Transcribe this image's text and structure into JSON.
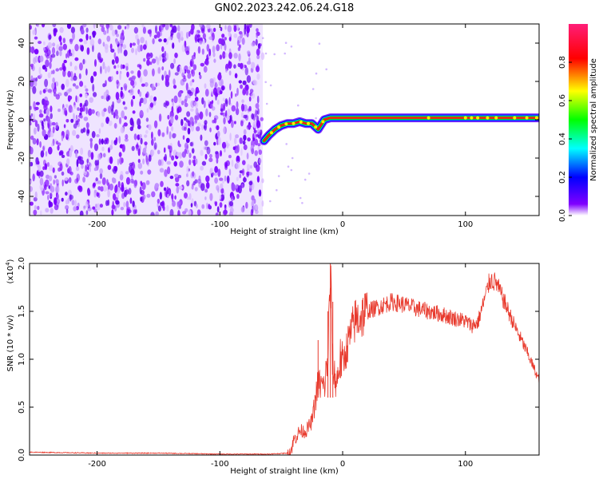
{
  "title": "GN02.2023.242.06.24.G18",
  "chart_data": [
    {
      "type": "heatmap",
      "xlabel": "Height of straight line (km)",
      "ylabel": "Frequency (Hz)",
      "xlim": [
        -255,
        160
      ],
      "ylim": [
        -50,
        50
      ],
      "xticks": [
        -200,
        -100,
        0,
        100
      ],
      "yticks": [
        -40,
        -20,
        0,
        20,
        40
      ],
      "noise_region_x": [
        -255,
        -65
      ],
      "ridge": {
        "x": [
          -64,
          -60,
          -55,
          -50,
          -45,
          -40,
          -35,
          -30,
          -25,
          -20,
          -18,
          -15,
          -10,
          0,
          20,
          40,
          60,
          80,
          100,
          120,
          140,
          160
        ],
        "y": [
          -11,
          -8,
          -5,
          -3,
          -2,
          -2,
          -1,
          -2,
          -2,
          -5,
          -3,
          0,
          1,
          1,
          1,
          1,
          1,
          1,
          1,
          1,
          1,
          1
        ]
      },
      "colorbar": {
        "label": "Normalized spectral amplitude",
        "range": [
          0,
          1
        ],
        "ticks": [
          "0.0",
          "0.2",
          "0.4",
          "0.6",
          "0.8"
        ],
        "colors": [
          "#ffffff",
          "#8000ff",
          "#0000ff",
          "#00ffff",
          "#00ff00",
          "#ffff00",
          "#ff0000",
          "#ff0080"
        ]
      }
    },
    {
      "type": "line",
      "xlabel": "Height of straight line (km)",
      "ylabel": "SNR (10 * v/v)",
      "yscale_label": "(x10",
      "yscale_exp": "4",
      "yscale_close": ")",
      "xlim": [
        -255,
        160
      ],
      "ylim": [
        0,
        2.0
      ],
      "xticks": [
        -200,
        -100,
        0,
        100
      ],
      "yticks": [
        "0.0",
        "0.5",
        "1.0",
        "1.5",
        "2.0"
      ],
      "series": [
        {
          "color": "#e8392c",
          "x": [
            -255,
            -200,
            -150,
            -100,
            -60,
            -45,
            -42,
            -40,
            -35,
            -30,
            -25,
            -20,
            -15,
            -12,
            -10,
            -8,
            -5,
            -2,
            0,
            5,
            10,
            20,
            30,
            40,
            50,
            60,
            70,
            80,
            90,
            100,
            105,
            110,
            115,
            120,
            125,
            130,
            140,
            150,
            160
          ],
          "y": [
            0.03,
            0.02,
            0.02,
            0.01,
            0.01,
            0.02,
            0.05,
            0.15,
            0.25,
            0.25,
            0.35,
            0.75,
            0.7,
            1.0,
            1.85,
            0.9,
            0.75,
            1.0,
            0.95,
            1.2,
            1.4,
            1.5,
            1.55,
            1.6,
            1.57,
            1.53,
            1.5,
            1.47,
            1.43,
            1.4,
            1.35,
            1.38,
            1.6,
            1.83,
            1.8,
            1.65,
            1.35,
            1.08,
            0.78
          ]
        }
      ]
    }
  ]
}
